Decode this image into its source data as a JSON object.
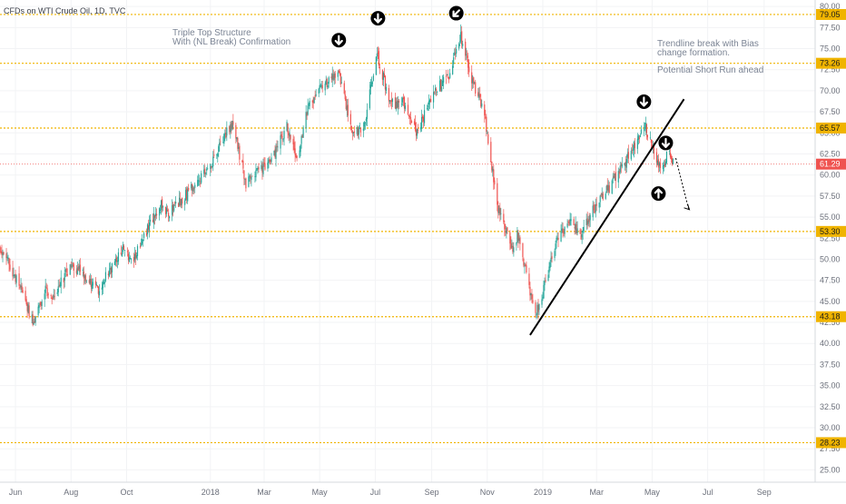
{
  "header": {
    "title": "CFDs on WTI Crude Oil, 1D, TVC"
  },
  "colors": {
    "up": "#26a69a",
    "down": "#ef5350",
    "level": "#f0b400",
    "current_line": "#ef5350",
    "axis_text": "#6b6f7a",
    "trendline": "#000000"
  },
  "chart_data": {
    "type": "candlestick",
    "title": "CFDs on WTI Crude Oil, 1D, TVC",
    "ylim": [
      23.75,
      80.5
    ],
    "y_ticks": [
      "80.00",
      "77.50",
      "75.00",
      "72.50",
      "70.00",
      "67.50",
      "65.00",
      "62.50",
      "60.00",
      "57.50",
      "55.00",
      "52.50",
      "50.00",
      "47.50",
      "45.00",
      "42.50",
      "40.00",
      "37.50",
      "35.00",
      "32.50",
      "30.00",
      "27.50",
      "25.00"
    ],
    "x_ticks": [
      "Jun",
      "Aug",
      "Oct",
      "2018",
      "Mar",
      "May",
      "Jul",
      "Sep",
      "Nov",
      "2019",
      "Mar",
      "May",
      "Jul",
      "Sep"
    ],
    "x_range": [
      "2017-05-15",
      "2019-10-27"
    ],
    "current_price": {
      "value": 61.29,
      "label": "61.29"
    },
    "levels": [
      {
        "value": 79.05,
        "label": "79.05"
      },
      {
        "value": 73.26,
        "label": "73.26"
      },
      {
        "value": 65.57,
        "label": "65.57"
      },
      {
        "value": 53.3,
        "label": "53.30"
      },
      {
        "value": 43.18,
        "label": "43.18"
      },
      {
        "value": 28.23,
        "label": "28.23"
      }
    ],
    "price_path": [
      [
        "2017-05-15",
        51.5
      ],
      [
        "2017-06-05",
        47.0
      ],
      [
        "2017-06-21",
        42.5
      ],
      [
        "2017-07-03",
        46.5
      ],
      [
        "2017-07-12",
        45.5
      ],
      [
        "2017-08-01",
        49.5
      ],
      [
        "2017-08-31",
        46.5
      ],
      [
        "2017-09-29",
        51.5
      ],
      [
        "2017-10-06",
        49.5
      ],
      [
        "2017-11-06",
        56.5
      ],
      [
        "2017-11-17",
        55.5
      ],
      [
        "2017-12-04",
        57.5
      ],
      [
        "2017-12-29",
        60.5
      ],
      [
        "2018-01-25",
        66.3
      ],
      [
        "2018-02-09",
        59.0
      ],
      [
        "2018-03-01",
        61.0
      ],
      [
        "2018-03-09",
        61.5
      ],
      [
        "2018-03-26",
        65.8
      ],
      [
        "2018-04-06",
        62.0
      ],
      [
        "2018-04-19",
        68.5
      ],
      [
        "2018-05-08",
        71.0
      ],
      [
        "2018-05-22",
        72.2
      ],
      [
        "2018-06-05",
        65.0
      ],
      [
        "2018-06-18",
        65.5
      ],
      [
        "2018-07-03",
        74.5
      ],
      [
        "2018-07-17",
        68.5
      ],
      [
        "2018-08-01",
        68.5
      ],
      [
        "2018-08-16",
        65.0
      ],
      [
        "2018-09-04",
        70.0
      ],
      [
        "2018-09-19",
        71.5
      ],
      [
        "2018-10-03",
        76.5
      ],
      [
        "2018-10-15",
        71.5
      ],
      [
        "2018-10-29",
        67.0
      ],
      [
        "2018-11-13",
        56.0
      ],
      [
        "2018-11-30",
        51.0
      ],
      [
        "2018-12-04",
        53.0
      ],
      [
        "2018-12-24",
        43.2
      ],
      [
        "2019-01-02",
        46.5
      ],
      [
        "2019-01-15",
        52.0
      ],
      [
        "2019-02-01",
        55.0
      ],
      [
        "2019-02-11",
        52.5
      ],
      [
        "2019-02-26",
        56.0
      ],
      [
        "2019-03-15",
        58.5
      ],
      [
        "2019-04-01",
        61.5
      ],
      [
        "2019-04-23",
        65.9
      ],
      [
        "2019-05-07",
        61.5
      ],
      [
        "2019-05-13",
        61.0
      ],
      [
        "2019-05-20",
        63.2
      ],
      [
        "2019-05-24",
        61.29
      ]
    ],
    "trendline": {
      "start": [
        "2018-12-18",
        41.0
      ],
      "end": [
        "2019-06-05",
        69.0
      ]
    },
    "projection": {
      "start": [
        "2019-05-27",
        62.0
      ],
      "end": [
        "2019-06-10",
        56.0
      ]
    },
    "markers": [
      {
        "date": "2018-05-22",
        "value": 76.0,
        "dir": "down"
      },
      {
        "date": "2018-07-04",
        "value": 78.6,
        "dir": "down"
      },
      {
        "date": "2018-09-28",
        "value": 79.2,
        "dir": "down-left"
      },
      {
        "date": "2019-04-22",
        "value": 68.7,
        "dir": "down"
      },
      {
        "date": "2019-05-16",
        "value": 63.8,
        "dir": "down"
      },
      {
        "date": "2019-05-08",
        "value": 57.8,
        "dir": "up"
      }
    ],
    "annotations": {
      "triple_top_line1": "Triple Top Structure",
      "triple_top_line2": "With (NL Break) Confirmation",
      "trend_line1": "Trendline break with Bias",
      "trend_line2": "change formation.",
      "trend_line3": "Potential Short Run ahead"
    }
  }
}
